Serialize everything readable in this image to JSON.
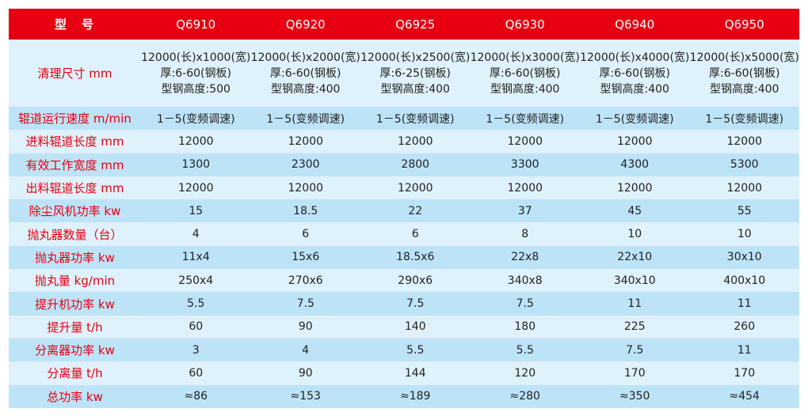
{
  "header": {
    "label": "型　号",
    "models": [
      "Q6910",
      "Q6920",
      "Q6925",
      "Q6930",
      "Q6940",
      "Q6950"
    ]
  },
  "rows": [
    {
      "label": "清理尺寸  mm",
      "values": [
        [
          "12000(长)x1000(宽)",
          "厚:6-60(钢板)",
          "型钢高度:500"
        ],
        [
          "12000(长)x2000(宽)",
          "厚:6-60(钢板)",
          "型钢高度:400"
        ],
        [
          "12000(长)x2500(宽)",
          "厚:6-25(钢板)",
          "型钢高度:400"
        ],
        [
          "12000(长)x3000(宽)",
          "厚:6-60(钢板)",
          "型钢高度:400"
        ],
        [
          "12000(长)x4000(宽)",
          "厚:6-60(钢板)",
          "型钢高度:400"
        ],
        [
          "12000(长)x5000(宽)",
          "厚:6-60(钢板)",
          "型钢高度:400"
        ]
      ]
    },
    {
      "label": "辊道运行速度  m/min",
      "values": [
        "1－5(变频调速)",
        "1－5(变频调速)",
        "1－5(变频调速)",
        "1－5(变频调速)",
        "1－5(变频调速)",
        "1－5(变频调速)"
      ]
    },
    {
      "label": "进料辊道长度  mm",
      "values": [
        "12000",
        "12000",
        "12000",
        "12000",
        "12000",
        "12000"
      ]
    },
    {
      "label": "有效工作宽度  mm",
      "values": [
        "1300",
        "2300",
        "2800",
        "3300",
        "4300",
        "5300"
      ]
    },
    {
      "label": "出料辊道长度  mm",
      "values": [
        "12000",
        "12000",
        "12000",
        "12000",
        "12000",
        "12000"
      ]
    },
    {
      "label": "除尘风机功率  kw",
      "values": [
        "15",
        "18.5",
        "22",
        "37",
        "45",
        "55"
      ]
    },
    {
      "label": "抛丸器数量（台）",
      "values": [
        "4",
        "6",
        "6",
        "8",
        "10",
        "10"
      ]
    },
    {
      "label": "抛丸器功率  kw",
      "values": [
        "11x4",
        "15x6",
        "18.5x6",
        "22x8",
        "22x10",
        "30x10"
      ]
    },
    {
      "label": "抛丸量  kg/min",
      "values": [
        "250x4",
        "270x6",
        "290x6",
        "340x8",
        "340x10",
        "400x10"
      ]
    },
    {
      "label": "提升机功率  kw",
      "values": [
        "5.5",
        "7.5",
        "7.5",
        "7.5",
        "11",
        "11"
      ]
    },
    {
      "label": "提升量  t/h",
      "values": [
        "60",
        "90",
        "140",
        "180",
        "225",
        "260"
      ]
    },
    {
      "label": "分离器功率  kw",
      "values": [
        "3",
        "4",
        "5.5",
        "5.5",
        "7.5",
        "11"
      ]
    },
    {
      "label": "分离量  t/h",
      "values": [
        "60",
        "90",
        "144",
        "120",
        "170",
        "170"
      ]
    },
    {
      "label": "总功率  kw",
      "values": [
        "≈86",
        "≈153",
        "≈189",
        "≈280",
        "≈350",
        "≈454"
      ]
    }
  ],
  "colors": {
    "header_bg": "#e60012",
    "row_light": "#dff1fb",
    "row_dark": "#bde3f7",
    "label_text": "#e60012"
  }
}
